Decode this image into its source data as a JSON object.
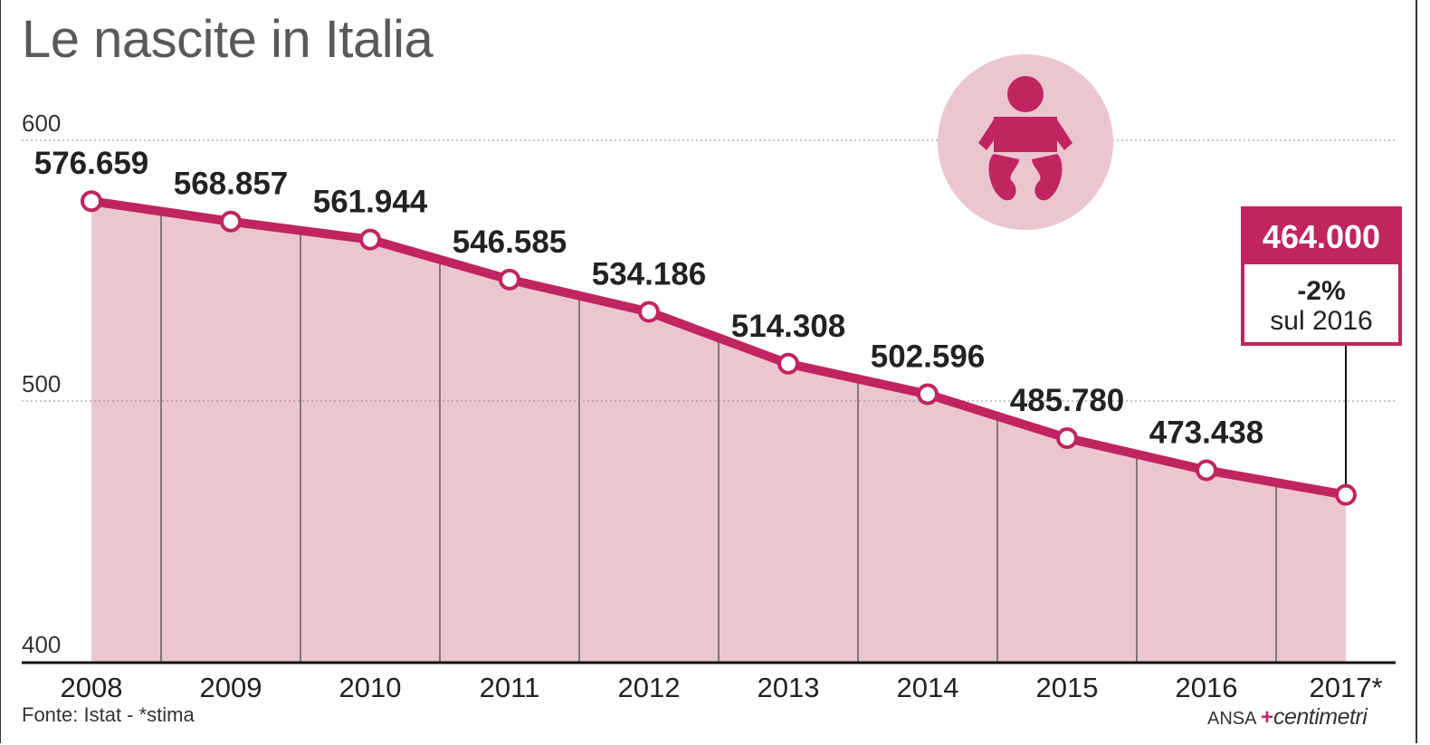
{
  "title": "Le nascite in Italia",
  "source": "Fonte: Istat  -  *stima",
  "brand": {
    "ansa": "ANSA",
    "centimetri": "centimetri"
  },
  "callout": {
    "value": "464.000",
    "change": "-2%",
    "sub": "sul 2016"
  },
  "icon": "baby-icon",
  "colors": {
    "line": "#c0255f",
    "area": "#ecc6cf",
    "callout": "#c0255f"
  },
  "chart_data": {
    "type": "area",
    "title": "Le nascite in Italia",
    "xlabel": "",
    "ylabel": "",
    "ylim": [
      400,
      600
    ],
    "yticks": [
      "400",
      "500",
      "600"
    ],
    "ytick_values": [
      400,
      500,
      600
    ],
    "grid": "dotted horizontal",
    "categories": [
      "2008",
      "2009",
      "2010",
      "2011",
      "2012",
      "2013",
      "2014",
      "2015",
      "2016",
      "2017*"
    ],
    "values": [
      576.659,
      568.857,
      561.944,
      546.585,
      534.186,
      514.308,
      502.596,
      485.78,
      473.438,
      464.0
    ],
    "labels": [
      "576.659",
      "568.857",
      "561.944",
      "546.585",
      "534.186",
      "514.308",
      "502.596",
      "485.780",
      "473.438",
      ""
    ]
  }
}
